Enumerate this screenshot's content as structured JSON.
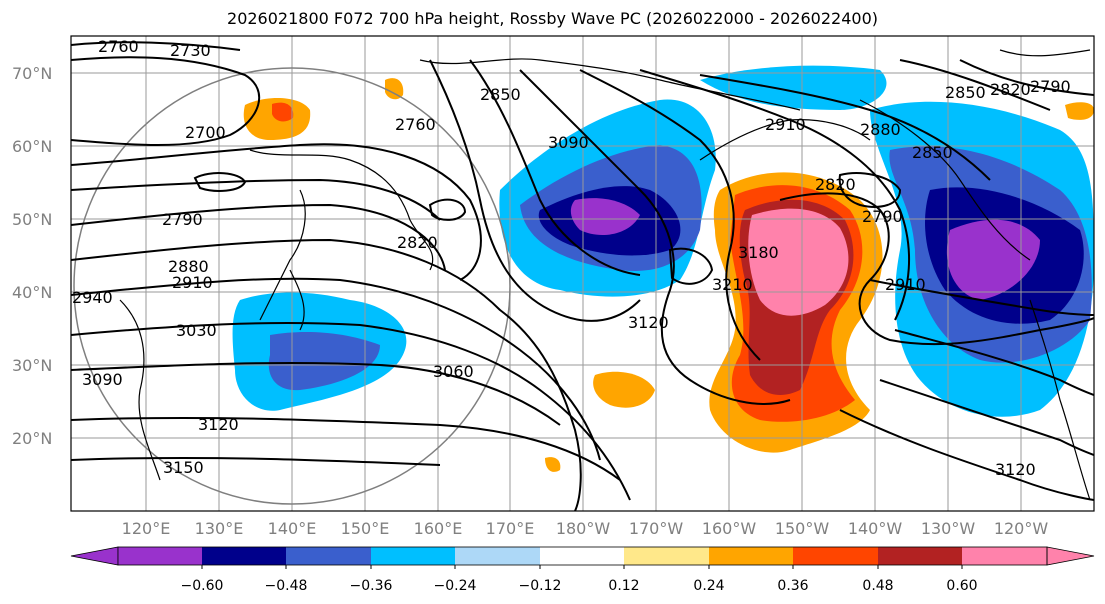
{
  "title": "2026021800 F072 700 hPa height, Rossby Wave PC (2026022000 - 2026022400)",
  "lat_labels": [
    "70°N",
    "60°N",
    "50°N",
    "40°N",
    "30°N",
    "20°N"
  ],
  "lon_labels": [
    "120°E",
    "130°E",
    "140°E",
    "150°E",
    "160°E",
    "170°E",
    "180°W",
    "170°W",
    "160°W",
    "150°W",
    "140°W",
    "130°W",
    "120°W"
  ],
  "contour_labels": [
    "2760",
    "2730",
    "2700",
    "2850",
    "2760",
    "3090",
    "2820",
    "2790",
    "2880",
    "2910",
    "2940",
    "3030",
    "3060",
    "3090",
    "3120",
    "3150",
    "3120",
    "2910",
    "3210",
    "3180",
    "2820",
    "2880",
    "2850",
    "2790",
    "2910",
    "2850",
    "2820",
    "2790",
    "3120"
  ],
  "colorbar": {
    "ticks": [
      "−0.60",
      "−0.48",
      "−0.36",
      "−0.24",
      "−0.12",
      "0.12",
      "0.24",
      "0.36",
      "0.48",
      "0.60"
    ],
    "colors": [
      "#9932cc",
      "#00008b",
      "#3a5fcd",
      "#00bfff",
      "#add8f7",
      "#ffffff",
      "#ffe88a",
      "#ffa500",
      "#ff4500",
      "#b22222",
      "#ff82ab",
      "#ff82ab"
    ]
  }
}
